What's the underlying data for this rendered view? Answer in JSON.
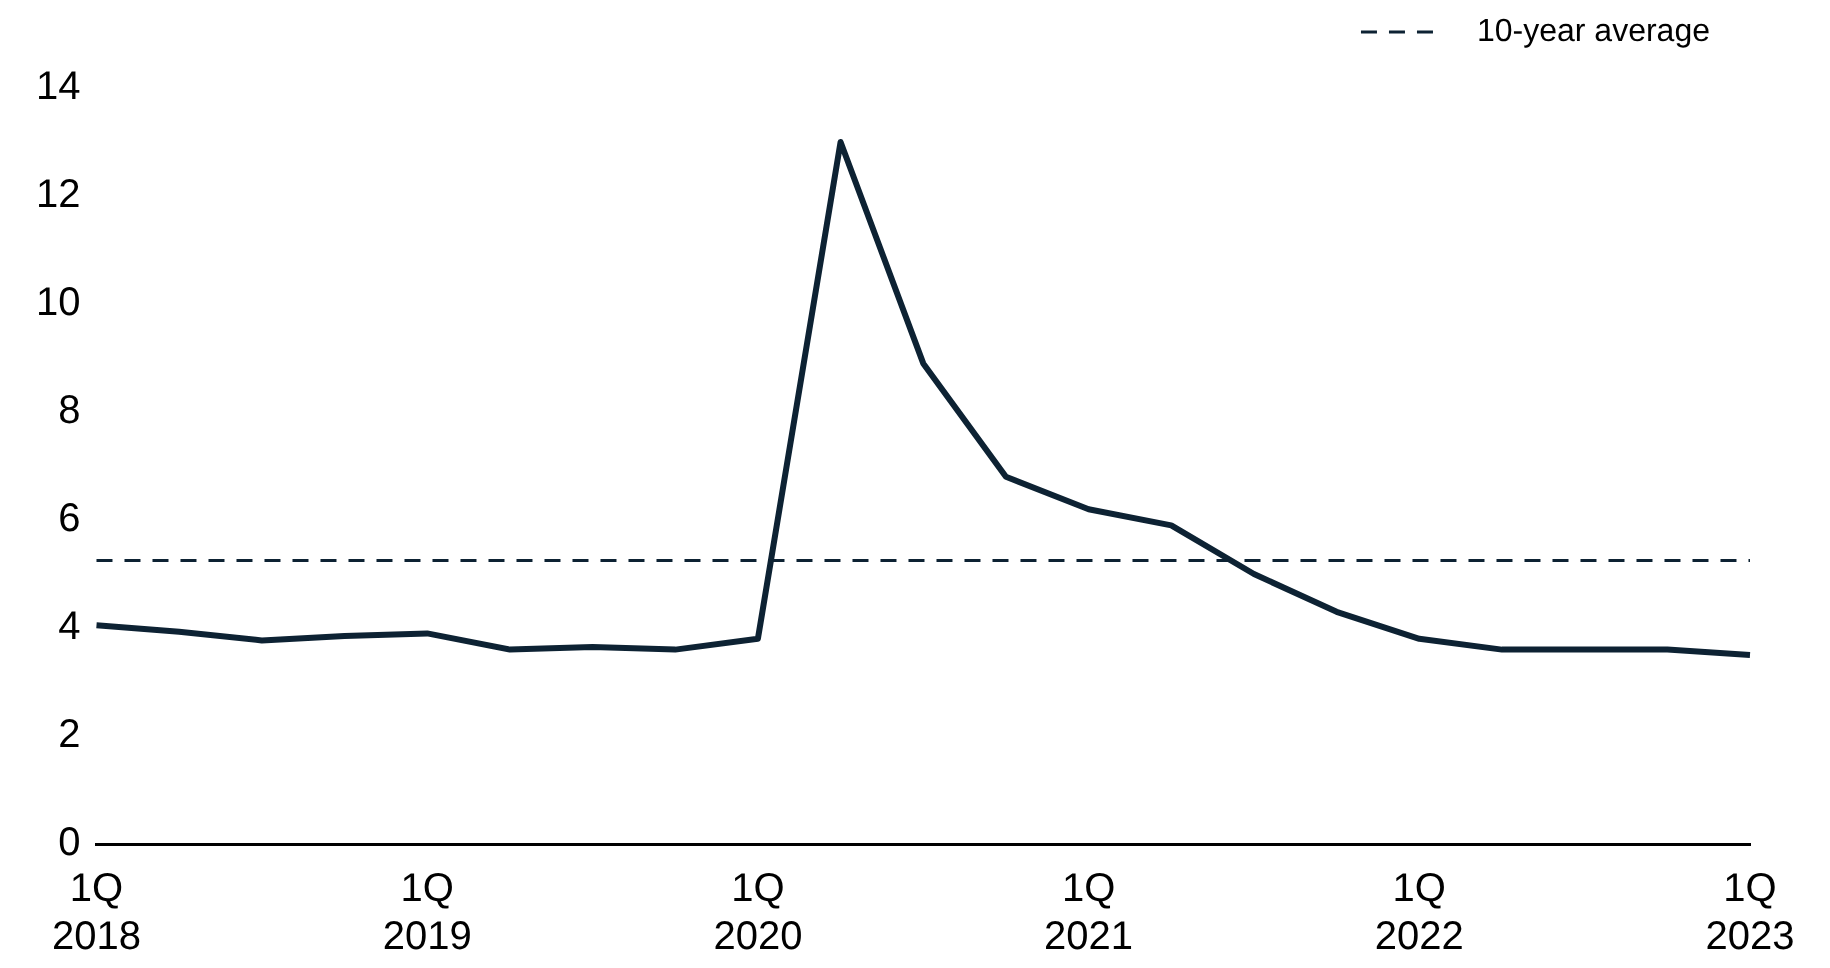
{
  "chart_data": {
    "type": "line",
    "categories": [
      "1Q\n2018",
      null,
      null,
      null,
      "1Q\n2019",
      null,
      null,
      null,
      "1Q\n2020",
      null,
      null,
      null,
      "1Q\n2021",
      null,
      null,
      null,
      "1Q\n2022",
      null,
      null,
      null,
      "1Q\n2023"
    ],
    "series": [
      {
        "color": "#0d2233",
        "values": [
          4.05,
          3.93,
          3.77,
          3.85,
          3.9,
          3.6,
          3.65,
          3.6,
          3.8,
          13.0,
          8.9,
          6.8,
          6.2,
          5.9,
          5.0,
          4.3,
          3.8,
          3.6,
          3.6,
          3.6,
          3.5
        ]
      }
    ],
    "ylim": [
      0,
      14
    ],
    "yticks": [
      0,
      2,
      4,
      6,
      8,
      10,
      12,
      14
    ],
    "ref_lines": [
      {
        "axis": "y",
        "value": 5.25,
        "label": "10-year average",
        "line_style": "dashed",
        "color": "#0d2233"
      }
    ],
    "legend": "top right",
    "grid": false,
    "marker": "none",
    "line_style": "solid"
  }
}
